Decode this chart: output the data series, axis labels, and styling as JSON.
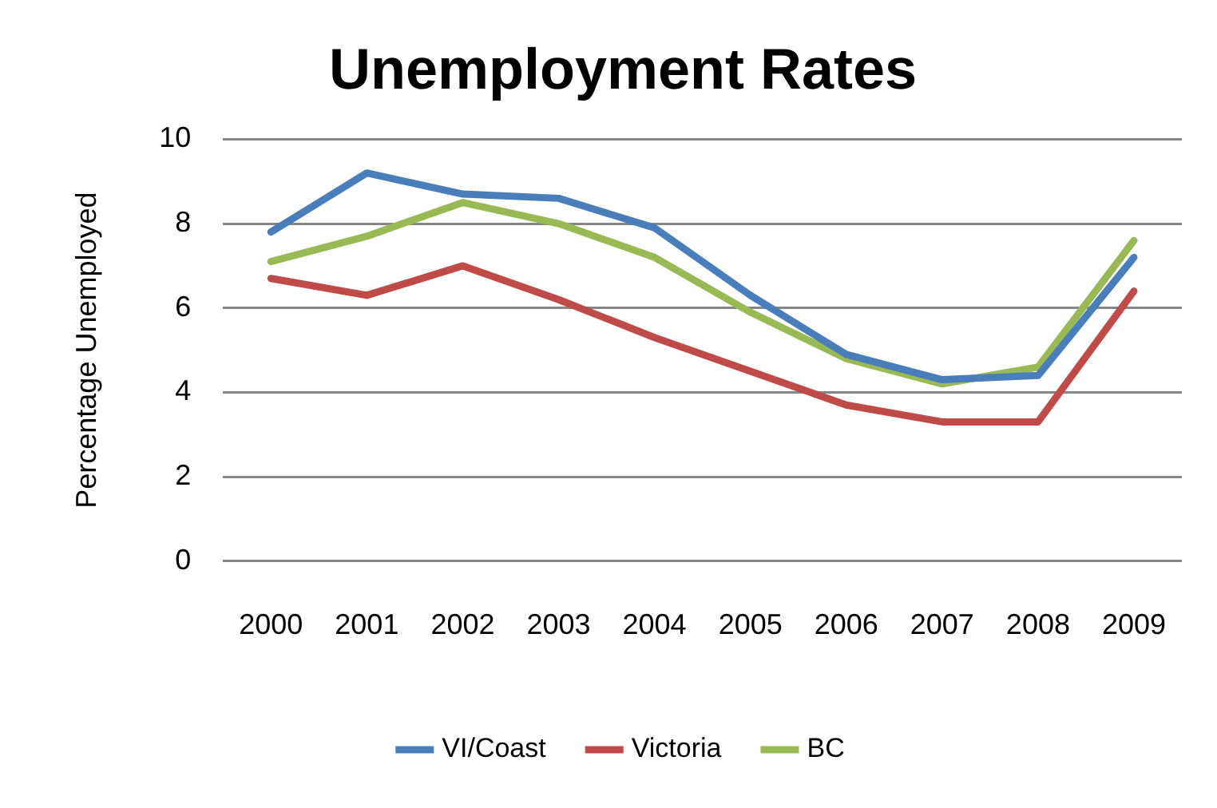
{
  "chart_data": {
    "type": "line",
    "title": "Unemployment Rates",
    "ylabel": "Percentage Unemployed",
    "categories": [
      "2000",
      "2001",
      "2002",
      "2003",
      "2004",
      "2005",
      "2006",
      "2007",
      "2008",
      "2009"
    ],
    "series": [
      {
        "name": "VI/Coast",
        "color": "#4a7ebb",
        "values": [
          7.8,
          9.2,
          8.7,
          8.6,
          7.9,
          6.3,
          4.9,
          4.3,
          4.4,
          7.2
        ]
      },
      {
        "name": "Victoria",
        "color": "#be4b48",
        "values": [
          6.7,
          6.3,
          7.0,
          6.2,
          5.3,
          4.5,
          3.7,
          3.3,
          3.3,
          6.4
        ]
      },
      {
        "name": "BC",
        "color": "#98b954",
        "values": [
          7.1,
          7.7,
          8.5,
          8.0,
          7.2,
          5.9,
          4.8,
          4.2,
          4.6,
          7.6
        ]
      }
    ],
    "ylim": [
      0,
      10
    ],
    "yticks": [
      0,
      2,
      4,
      6,
      8,
      10
    ],
    "grid": "y",
    "legend": "bottom",
    "marker": "none",
    "line_style": "solid"
  }
}
